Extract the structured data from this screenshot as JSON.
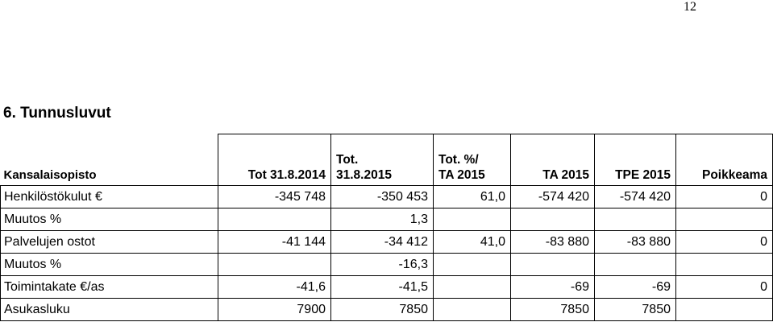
{
  "page_number": "12",
  "heading": "6. Tunnusluvut",
  "table": {
    "header": [
      [
        "Kansalaisopisto"
      ],
      [
        "Tot 31.8.2014"
      ],
      [
        "Tot.",
        "31.8.2015"
      ],
      [
        "Tot. %/",
        "TA 2015"
      ],
      [
        "TA 2015"
      ],
      [
        "TPE 2015"
      ],
      [
        "Poikkeama"
      ]
    ],
    "rows": [
      [
        "Henkilöstökulut €",
        "-345 748",
        "-350 453",
        "61,0",
        "-574 420",
        "-574 420",
        "0"
      ],
      [
        "Muutos %",
        null,
        "1,3",
        null,
        null,
        null,
        null
      ],
      [
        "Palvelujen ostot",
        "-41 144",
        "-34 412",
        "41,0",
        "-83 880",
        "-83 880",
        "0"
      ],
      [
        "Muutos %",
        null,
        "-16,3",
        null,
        null,
        null,
        null
      ],
      [
        "Toimintakate €/as",
        "-41,6",
        "-41,5",
        null,
        "-69",
        "-69",
        "0"
      ],
      [
        "Asukasluku",
        "7900",
        "7850",
        null,
        "7850",
        "7850",
        null
      ]
    ]
  }
}
